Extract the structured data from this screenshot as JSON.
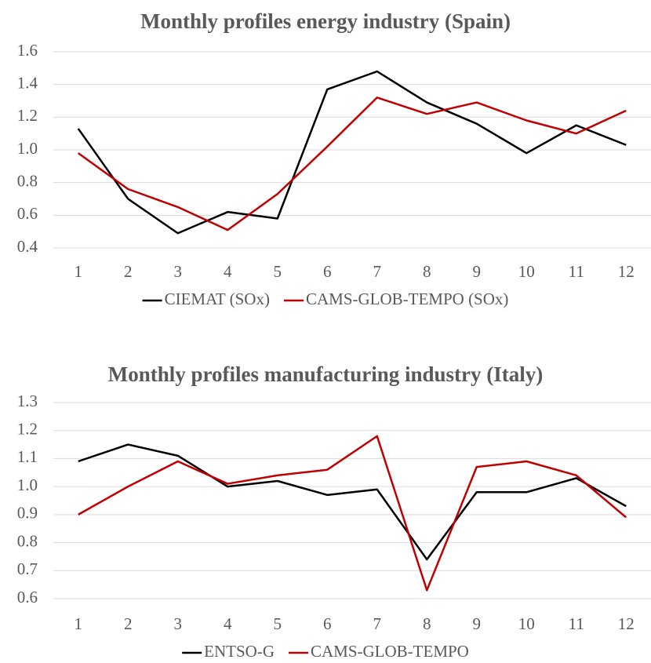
{
  "chart_data": [
    {
      "type": "line",
      "title": "Monthly profiles energy industry (Spain)",
      "categories": [
        "1",
        "2",
        "3",
        "4",
        "5",
        "6",
        "7",
        "8",
        "9",
        "10",
        "11",
        "12"
      ],
      "series": [
        {
          "name": "CIEMAT (SOx)",
          "color": "#000000",
          "values": [
            1.13,
            0.7,
            0.49,
            0.62,
            0.58,
            1.37,
            1.48,
            1.29,
            1.16,
            0.98,
            1.15,
            1.03
          ]
        },
        {
          "name": "CAMS-GLOB-TEMPO (SOx)",
          "color": "#c00000",
          "values": [
            0.98,
            0.76,
            0.65,
            0.51,
            0.73,
            1.02,
            1.32,
            1.22,
            1.29,
            1.18,
            1.1,
            1.24
          ]
        }
      ],
      "ylim": [
        0.4,
        1.6
      ],
      "yticks": [
        0.4,
        0.6,
        0.8,
        {
          "value": 1,
          "label": "1.0"
        },
        1.2,
        1.4,
        1.6
      ],
      "grid": true,
      "legend": "bottom"
    },
    {
      "type": "line",
      "title": "Monthly profiles manufacturing industry (Italy)",
      "categories": [
        "1",
        "2",
        "3",
        "4",
        "5",
        "6",
        "7",
        "8",
        "9",
        "10",
        "11",
        "12"
      ],
      "series": [
        {
          "name": "ENTSO-G",
          "color": "#000000",
          "values": [
            1.09,
            1.15,
            1.11,
            1.0,
            1.02,
            0.97,
            0.99,
            0.74,
            0.98,
            0.98,
            1.03,
            0.93
          ]
        },
        {
          "name": "CAMS-GLOB-TEMPO",
          "color": "#c00000",
          "values": [
            0.9,
            1.0,
            1.09,
            1.01,
            1.04,
            1.06,
            1.18,
            0.63,
            1.07,
            1.09,
            1.04,
            0.89
          ]
        }
      ],
      "ylim": [
        0.6,
        1.3
      ],
      "yticks": [
        0.6,
        0.7,
        0.8,
        0.9,
        {
          "value": 1,
          "label": "1.0"
        },
        1.1,
        1.2,
        1.3
      ],
      "grid": true,
      "legend": "bottom"
    }
  ]
}
